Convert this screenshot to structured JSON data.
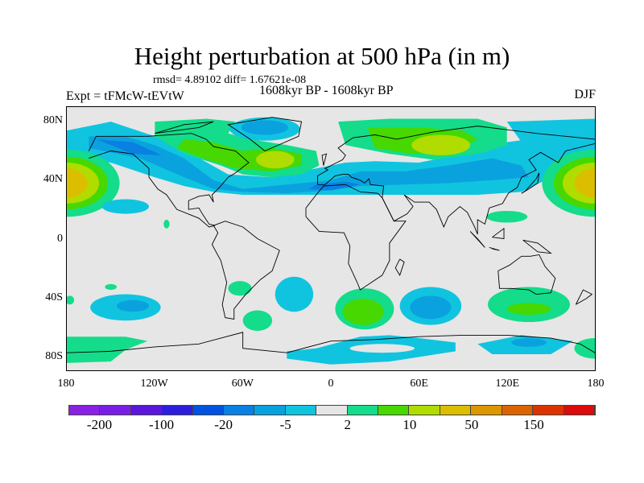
{
  "title": "Height perturbation at 500 hPa (in m)",
  "stats": "rmsd= 4.89102 diff= 1.67621e-08",
  "left_label": "Expt = tFMcW-tEVtW",
  "center_label": "1608kyr BP - 1608kyr BP",
  "right_label": "DJF",
  "lat_ticks": [
    {
      "lat": 80,
      "label": "80N"
    },
    {
      "lat": 40,
      "label": "40N"
    },
    {
      "lat": 0,
      "label": "0"
    },
    {
      "lat": -40,
      "label": "40S"
    },
    {
      "lat": -80,
      "label": "80S"
    }
  ],
  "lon_ticks": [
    {
      "lon": -180,
      "label": "180"
    },
    {
      "lon": -120,
      "label": "120W"
    },
    {
      "lon": -60,
      "label": "60W"
    },
    {
      "lon": 0,
      "label": "0"
    },
    {
      "lon": 60,
      "label": "60E"
    },
    {
      "lon": 120,
      "label": "120E"
    },
    {
      "lon": 180,
      "label": "180"
    }
  ],
  "colorbar": {
    "colors": [
      "#8a20e2",
      "#7a1ee6",
      "#5a16da",
      "#2c1edc",
      "#0052e0",
      "#0a80e2",
      "#0aa2de",
      "#10c4e0",
      "#e6e6e6",
      "#14dc8a",
      "#46d800",
      "#b0dc00",
      "#dcbe00",
      "#dc9600",
      "#dc6400",
      "#dc3400",
      "#dc0c0c"
    ],
    "labels": [
      {
        "boundary": 1,
        "text": "-200"
      },
      {
        "boundary": 3,
        "text": "-100"
      },
      {
        "boundary": 5,
        "text": "-20"
      },
      {
        "boundary": 7,
        "text": "-5"
      },
      {
        "boundary": 9,
        "text": "2"
      },
      {
        "boundary": 11,
        "text": "10"
      },
      {
        "boundary": 13,
        "text": "50"
      },
      {
        "boundary": 15,
        "text": "150"
      }
    ]
  }
}
